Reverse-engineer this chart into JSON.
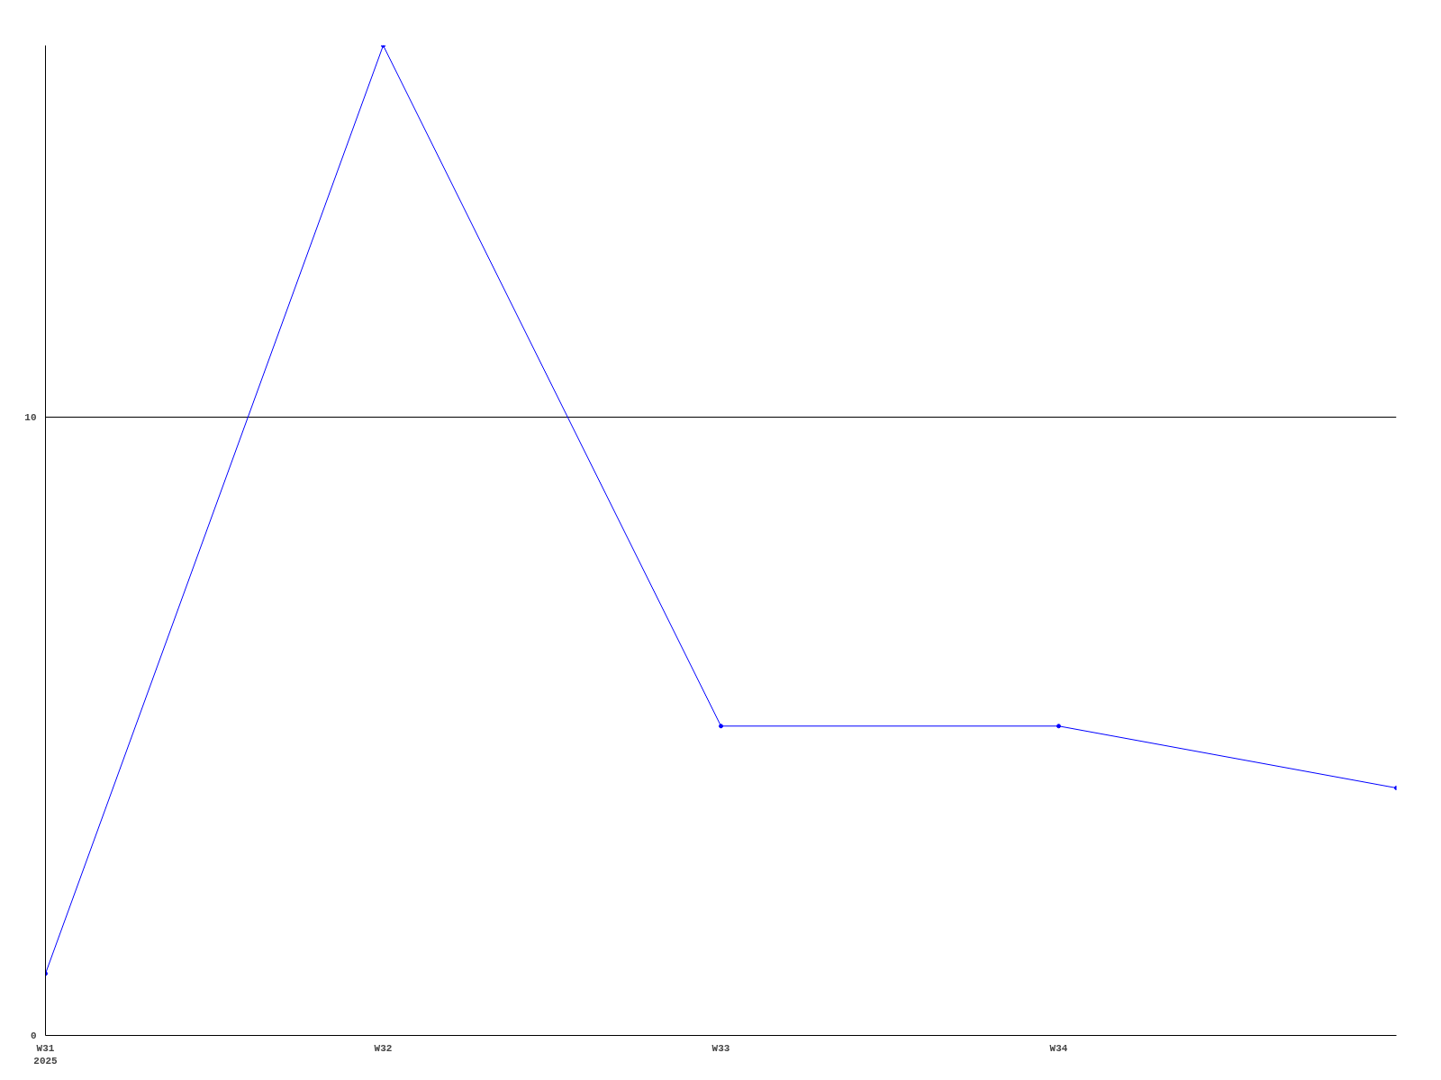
{
  "chart_data": {
    "type": "line",
    "categories": [
      "W31\n2025",
      "W32",
      "W33",
      "W34",
      null
    ],
    "series": [
      {
        "color": "#0000ff",
        "values": [
          1,
          16,
          5,
          5,
          4
        ]
      }
    ],
    "ylim": [
      0,
      16
    ],
    "yticks": [
      0,
      10
    ],
    "grid": "y",
    "marker": "circle",
    "line_style": "solid"
  }
}
